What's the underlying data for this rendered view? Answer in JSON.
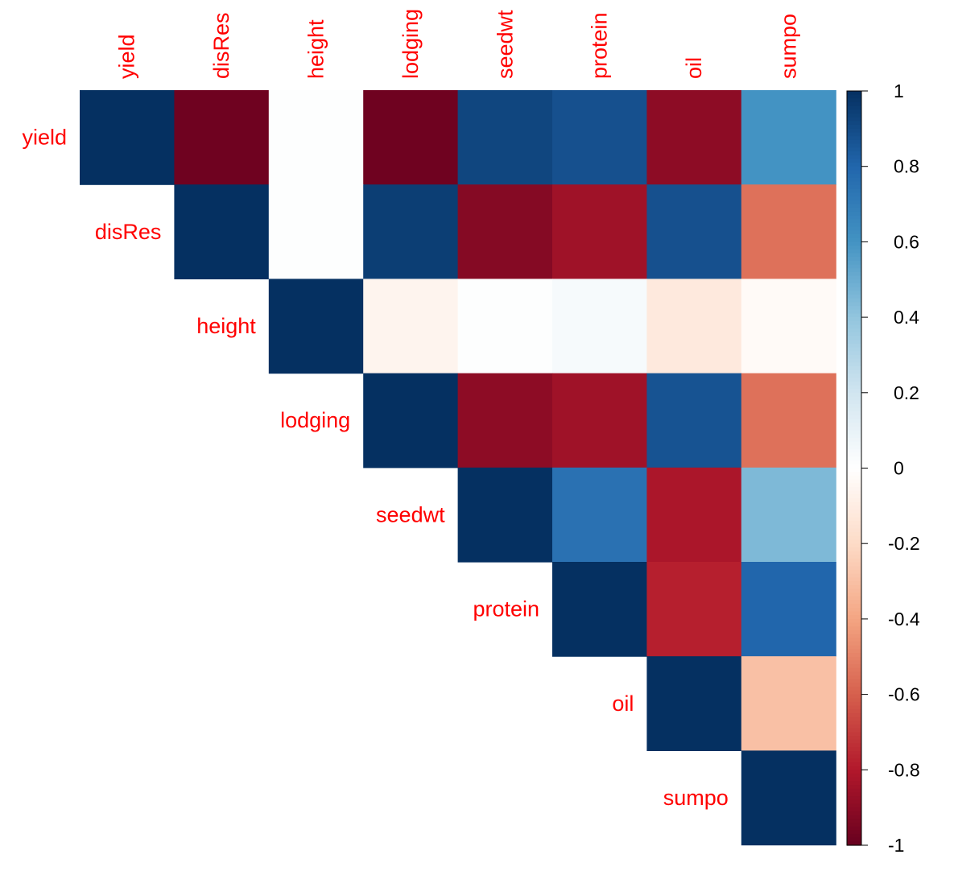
{
  "chart_data": {
    "type": "heatmap",
    "subtype": "correlation-matrix-upper",
    "variables": [
      "yield",
      "disRes",
      "height",
      "lodging",
      "seedwt",
      "protein",
      "oil",
      "sumpo"
    ],
    "matrix": [
      [
        1,
        -0.98,
        0.01,
        -0.98,
        0.92,
        0.88,
        -0.9,
        0.6
      ],
      [
        null,
        1,
        0.01,
        0.95,
        -0.92,
        -0.85,
        0.88,
        -0.55
      ],
      [
        null,
        null,
        1,
        -0.06,
        0.01,
        0.04,
        -0.12,
        -0.03
      ],
      [
        null,
        null,
        null,
        1,
        -0.9,
        -0.85,
        0.87,
        -0.55
      ],
      [
        null,
        null,
        null,
        null,
        1,
        0.75,
        -0.82,
        0.45
      ],
      [
        null,
        null,
        null,
        null,
        null,
        1,
        -0.78,
        0.8
      ],
      [
        null,
        null,
        null,
        null,
        null,
        null,
        1,
        -0.3
      ],
      [
        null,
        null,
        null,
        null,
        null,
        null,
        null,
        1
      ]
    ],
    "colorbar": {
      "range": [
        -1,
        1
      ],
      "ticks": [
        "1",
        "0.8",
        "0.6",
        "0.4",
        "0.2",
        "0",
        "-0.2",
        "-0.4",
        "-0.6",
        "-0.8",
        "-1"
      ],
      "placement": "right"
    },
    "colorscale": [
      "#67001F",
      "#B2182B",
      "#D6604D",
      "#F4A582",
      "#FDDBC7",
      "#FFFFFF",
      "#D1E5F0",
      "#92C5DE",
      "#4393C3",
      "#2166AC",
      "#053061"
    ],
    "label_color": "#FF0000"
  }
}
